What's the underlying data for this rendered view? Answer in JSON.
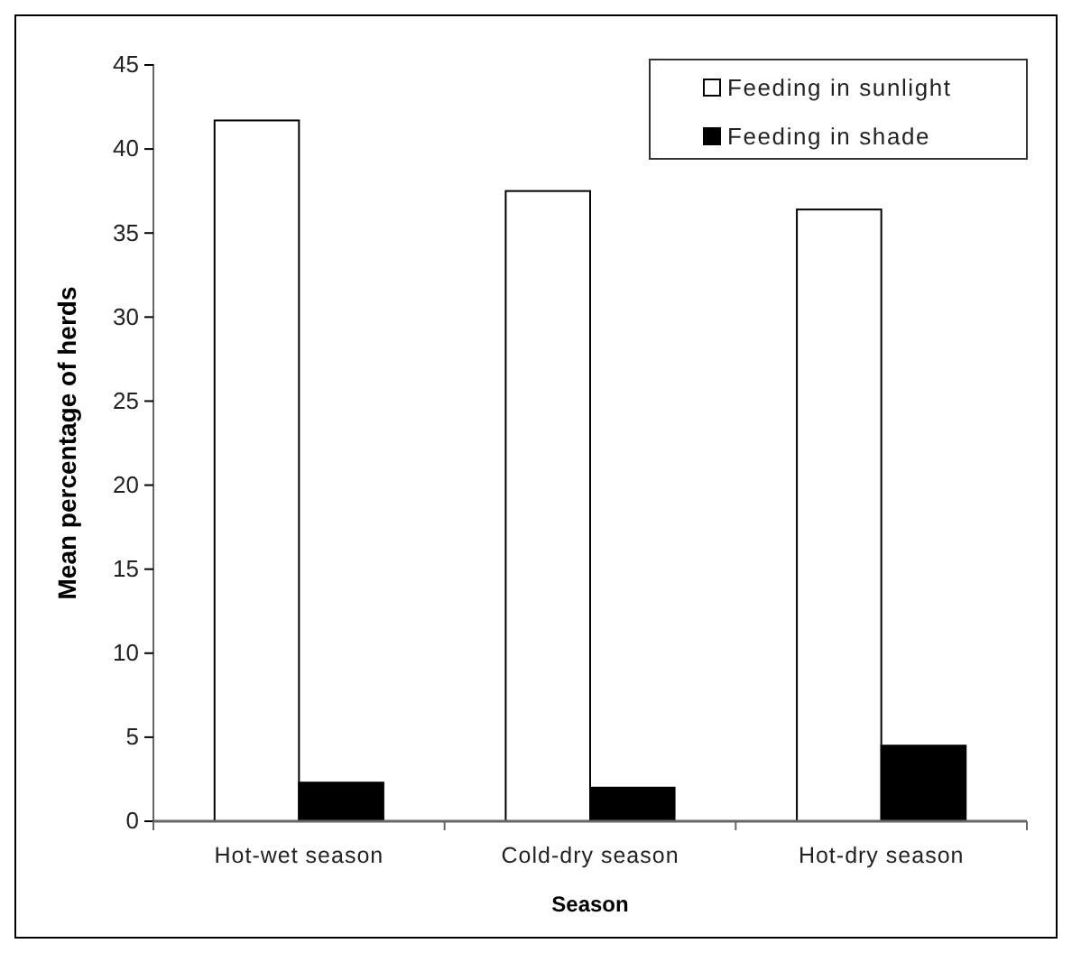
{
  "chart_data": {
    "type": "bar",
    "xlabel": "Season",
    "ylabel": "Mean percentage of herds",
    "categories": [
      "Hot-wet season",
      "Cold-dry season",
      "Hot-dry season"
    ],
    "series": [
      {
        "name": "Feeding in sunlight",
        "color": "#ffffff",
        "values": [
          41.7,
          37.5,
          36.4
        ]
      },
      {
        "name": "Feeding in shade",
        "color": "#000000",
        "values": [
          2.3,
          2.0,
          4.5
        ]
      }
    ],
    "ylim": [
      0,
      45
    ],
    "yticks": [
      0,
      5,
      10,
      15,
      20,
      25,
      30,
      35,
      40,
      45
    ],
    "grid": false,
    "legend": "top right"
  }
}
